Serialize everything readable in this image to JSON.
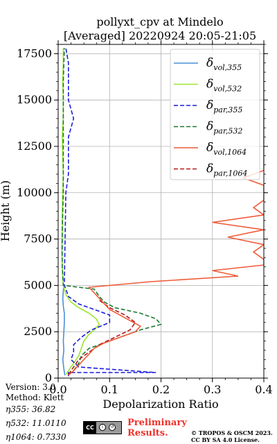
{
  "chart_data": {
    "type": "line",
    "title": "pollyxt_cpv at Mindelo",
    "subtitle": "[Averaged] 20220924 20:05-21:05",
    "xlabel": "Depolarization Ratio",
    "ylabel": "Height (m)",
    "xlim": [
      0,
      0.4
    ],
    "ylim": [
      0,
      18000
    ],
    "xticks": [
      0.0,
      0.1,
      0.2,
      0.3,
      0.4
    ],
    "xtick_labels": [
      "0.0",
      "0.1",
      "0.2",
      "0.3",
      "0.4"
    ],
    "yticks": [
      0,
      2500,
      5000,
      7500,
      10000,
      12500,
      15000,
      17500
    ],
    "ytick_labels": [
      "0",
      "2500",
      "5000",
      "7500",
      "10000",
      "12500",
      "15000",
      "17500"
    ],
    "grid": true,
    "legend_position": "top-right",
    "series": [
      {
        "name": "δ_{vol,355}",
        "label_base": "δ",
        "label_sub": "vol,355",
        "color": "#4a90d9",
        "dash": "solid",
        "y": [
          150,
          500,
          1000,
          1500,
          2000,
          2500,
          3000,
          3500,
          3900,
          4300,
          4700,
          5000
        ],
        "x": [
          0.013,
          0.011,
          0.009,
          0.011,
          0.01,
          0.011,
          0.012,
          0.012,
          0.01,
          0.009,
          0.01,
          0.011
        ]
      },
      {
        "name": "δ_{vol,532}",
        "label_base": "δ",
        "label_sub": "vol,532",
        "color": "#99e62e",
        "dash": "solid",
        "y": [
          200,
          400,
          800,
          1200,
          1600,
          2000,
          2300,
          2600,
          2900,
          3200,
          3500,
          3800,
          4100,
          4500,
          5000,
          6000,
          7000,
          8000,
          9000,
          10000,
          11000,
          12000,
          13000,
          14000,
          15000,
          16000,
          17000,
          17800
        ],
        "x": [
          0.015,
          0.02,
          0.03,
          0.04,
          0.045,
          0.05,
          0.058,
          0.07,
          0.08,
          0.074,
          0.06,
          0.04,
          0.025,
          0.015,
          0.01,
          0.008,
          0.007,
          0.008,
          0.008,
          0.009,
          0.01,
          0.009,
          0.008,
          0.01,
          0.01,
          0.009,
          0.01,
          0.01
        ]
      },
      {
        "name": "δ_{par,355}",
        "label_base": "δ",
        "label_sub": "par,355",
        "color": "#1c1cd9",
        "dash": "dashed",
        "y": [
          100,
          300,
          300,
          600,
          1000,
          1400,
          1800,
          2200,
          2600,
          3000,
          3400,
          3700,
          4000,
          4400,
          4800,
          5000,
          10000,
          11000,
          12000,
          13000,
          14000,
          15000,
          16000,
          17000,
          17800
        ],
        "x": [
          0.02,
          0.02,
          0.19,
          0.04,
          0.025,
          0.03,
          0.03,
          0.045,
          0.065,
          0.1,
          0.1,
          0.07,
          0.04,
          0.02,
          0.015,
          0.012,
          0.015,
          0.02,
          0.02,
          0.02,
          0.03,
          0.02,
          0.02,
          0.02,
          0.015
        ]
      },
      {
        "name": "δ_{par,532}",
        "label_base": "δ",
        "label_sub": "par,532",
        "color": "#1a7a2e",
        "dash": "dashed",
        "y": [
          200,
          400,
          800,
          1200,
          1600,
          2000,
          2300,
          2600,
          2900,
          3200,
          3500,
          3800,
          4100,
          4400,
          4800,
          5000,
          6000,
          8000,
          10000,
          12000,
          14000,
          16000,
          17800
        ],
        "x": [
          0.02,
          0.03,
          0.04,
          0.045,
          0.06,
          0.1,
          0.13,
          0.16,
          0.2,
          0.19,
          0.16,
          0.11,
          0.09,
          0.08,
          0.07,
          0.01,
          0.008,
          0.008,
          0.01,
          0.01,
          0.01,
          0.01,
          0.012
        ]
      },
      {
        "name": "δ_{vol,1064}",
        "label_base": "δ",
        "label_sub": "vol,1064",
        "color": "#f05a38",
        "dash": "solid",
        "y": [
          150,
          400,
          700,
          1000,
          1300,
          1600,
          1900,
          2200,
          2500,
          2800,
          3100,
          3400,
          3700,
          4000,
          4300,
          4600,
          4900,
          5200,
          5500,
          5800,
          6100,
          6400,
          6800,
          7200,
          7600,
          8000,
          8400,
          8800,
          9200,
          9600,
          10000,
          10400,
          10800,
          11200,
          11600,
          12000,
          12400,
          12800,
          13200,
          13600,
          14000,
          14400,
          14800,
          15200,
          15600,
          16000,
          16400,
          16800,
          17200,
          17600,
          17900
        ],
        "x": [
          0.02,
          0.03,
          0.04,
          0.05,
          0.06,
          0.07,
          0.09,
          0.12,
          0.15,
          0.16,
          0.14,
          0.12,
          0.1,
          0.09,
          0.08,
          0.07,
          0.06,
          0.18,
          0.35,
          0.3,
          0.4,
          0.4,
          0.38,
          0.4,
          0.33,
          0.4,
          0.3,
          0.4,
          0.38,
          0.4,
          0.4,
          0.4,
          0.36,
          0.4,
          0.4,
          0.4,
          0.4,
          0.4,
          0.4,
          0.4,
          0.4,
          0.4,
          0.4,
          0.4,
          0.4,
          0.4,
          0.4,
          0.4,
          0.4,
          0.4,
          0.4
        ]
      },
      {
        "name": "δ_{par,1064}",
        "label_base": "δ",
        "label_sub": "par,1064",
        "color": "#b51a1a",
        "dash": "dashed",
        "y": [
          200,
          600,
          1000,
          1400,
          1800,
          2200,
          2600,
          3000,
          3400,
          3800,
          4200
        ],
        "x": [
          0.02,
          0.03,
          0.04,
          0.06,
          0.08,
          0.11,
          0.14,
          0.15,
          0.13,
          0.1,
          0.08
        ]
      }
    ]
  },
  "footer": {
    "version": "Version: 3.0",
    "method": "Method: Klett",
    "eta355": "η355:  36.82",
    "eta532": "η532: 11.0110",
    "eta1064": "η1064: 0.7330",
    "preliminary": "Preliminary",
    "results": "Results.",
    "copyright_line1": "© TROPOS & OSCM 2023.",
    "copyright_line2": "CC BY SA 4.0 License.",
    "license_badge": "CC"
  }
}
